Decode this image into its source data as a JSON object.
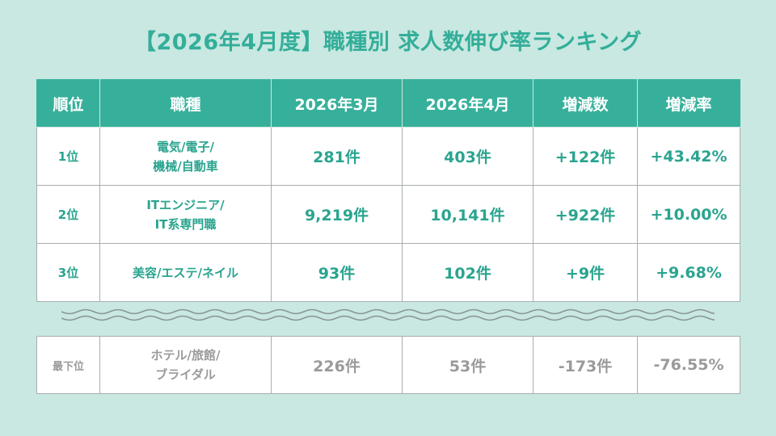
{
  "title": "【2026年4月度】職種別 求人数伸び率ランキング",
  "headers": {
    "rank": "順位",
    "job": "職種",
    "march": "2026年3月",
    "april": "2026年4月",
    "diff": "増減数",
    "rate": "増減率"
  },
  "rows": [
    {
      "rank": "1位",
      "job_line1": "電気/電子/",
      "job_line2": "機械/自動車",
      "march": "281件",
      "april": "403件",
      "diff": "+122件",
      "rate": "+43.42%"
    },
    {
      "rank": "2位",
      "job_line1": "ITエンジニア/",
      "job_line2": "IT系専門職",
      "march": "9,219件",
      "april": "10,141件",
      "diff": "+922件",
      "rate": "+10.00%"
    },
    {
      "rank": "3位",
      "job_line1": "美容/エステ/ネイル",
      "job_line2": "",
      "march": "93件",
      "april": "102件",
      "diff": "+9件",
      "rate": "+9.68%"
    }
  ],
  "bottom": {
    "rank": "最下位",
    "job_line1": "ホテル/旅館/",
    "job_line2": "ブライダル",
    "march": "226件",
    "april": "53件",
    "diff": "-173件",
    "rate": "-76.55%"
  },
  "colors": {
    "accent": "#37b09b",
    "background": "#c8e8e1",
    "muted": "#9a9a9a"
  }
}
